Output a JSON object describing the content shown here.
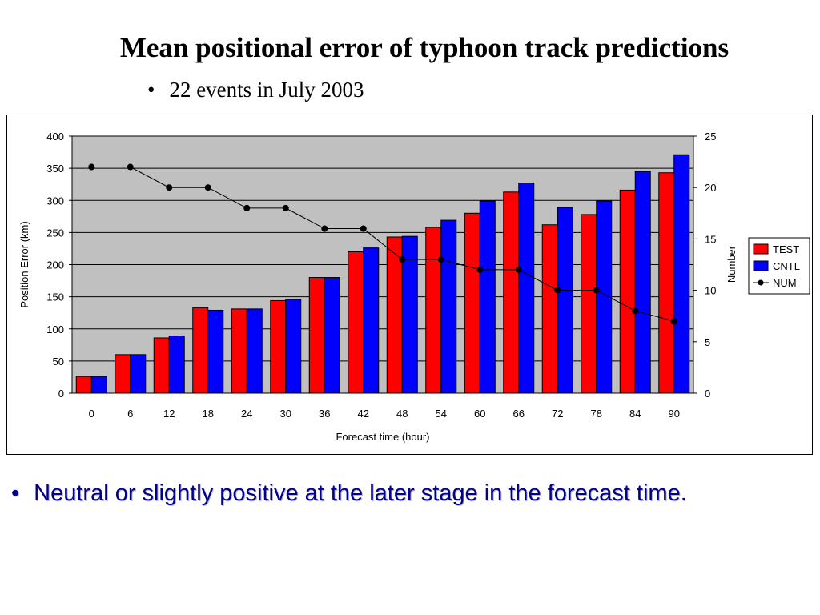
{
  "slide": {
    "title": "Mean positional error of typhoon track predictions",
    "subtitle": "22 events in July 2003",
    "bullet_char": "•",
    "bottom_text": "Neutral or slightly positive at the later stage in the forecast time."
  },
  "chart_data": {
    "type": "bar",
    "title": "",
    "xlabel": "Forecast time (hour)",
    "ylabel": "Position Error (km)",
    "y2label": "Number",
    "ylim": [
      0,
      400
    ],
    "y_ticks": [
      0,
      50,
      100,
      150,
      200,
      250,
      300,
      350,
      400
    ],
    "y2lim": [
      0,
      25
    ],
    "y2_ticks": [
      0,
      5,
      10,
      15,
      20,
      25
    ],
    "categories": [
      "0",
      "6",
      "12",
      "18",
      "24",
      "30",
      "36",
      "42",
      "48",
      "54",
      "60",
      "66",
      "72",
      "78",
      "84",
      "90"
    ],
    "series": [
      {
        "name": "TEST",
        "kind": "bar",
        "axis": "left",
        "color": "#ff0000",
        "values": [
          26,
          60,
          86,
          133,
          131,
          144,
          180,
          220,
          243,
          258,
          280,
          313,
          262,
          278,
          316,
          343
        ]
      },
      {
        "name": "CNTL",
        "kind": "bar",
        "axis": "left",
        "color": "#0000ff",
        "values": [
          26,
          60,
          89,
          129,
          131,
          146,
          180,
          226,
          244,
          269,
          299,
          327,
          289,
          299,
          345,
          371
        ]
      },
      {
        "name": "NUM",
        "kind": "line",
        "axis": "right",
        "color": "#000000",
        "values": [
          22,
          22,
          20,
          20,
          18,
          18,
          16,
          16,
          13,
          13,
          12,
          12,
          10,
          10,
          8,
          7
        ]
      }
    ],
    "grid": true,
    "plot_background": "#c0c0c0",
    "legend_position": "right"
  }
}
